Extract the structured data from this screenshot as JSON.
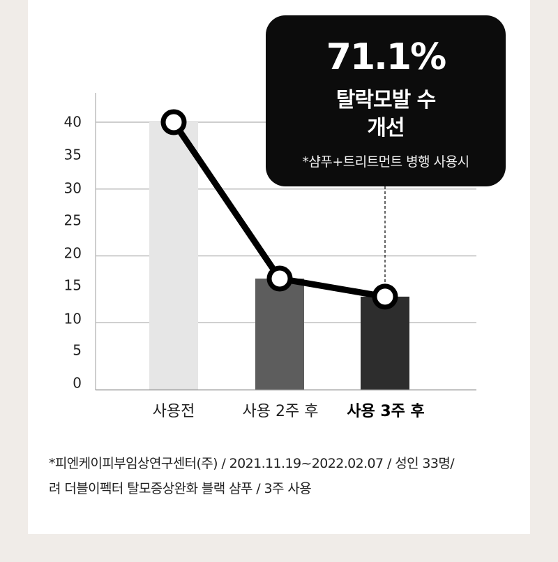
{
  "chart_data": {
    "type": "bar",
    "categories": [
      "사용전",
      "사용 2주 후",
      "사용 3주 후"
    ],
    "values": [
      40,
      16.6,
      13.9
    ],
    "overlay": "line",
    "ylim": [
      0,
      40
    ],
    "yticks": [
      "0",
      "5",
      "10",
      "15",
      "20",
      "25",
      "30",
      "35",
      "40"
    ],
    "title": "",
    "xlabel": "",
    "ylabel": "",
    "grid": true,
    "bar_colors": [
      "#e6e6e6",
      "#5d5d5d",
      "#2d2d2d"
    ],
    "highlight_category_index": 2
  },
  "callout": {
    "percent": "71.1%",
    "headline_line1": "탈락모발 수",
    "headline_line2": "개선",
    "note": "*샴푸+트리트먼트 병행 사용시"
  },
  "footnote": {
    "line1": "*피엔케이피부임상연구센터(주) / 2021.11.19~2022.02.07 / 성인 33명/",
    "line2": "려 더블이펙터 탈모증상완화 블랙 샴푸 / 3주 사용"
  },
  "colors": {
    "background": "#f0ece8",
    "card": "#ffffff",
    "callout": "#0c0c0c",
    "line": "#000000",
    "grid": "#bdbdbd"
  }
}
